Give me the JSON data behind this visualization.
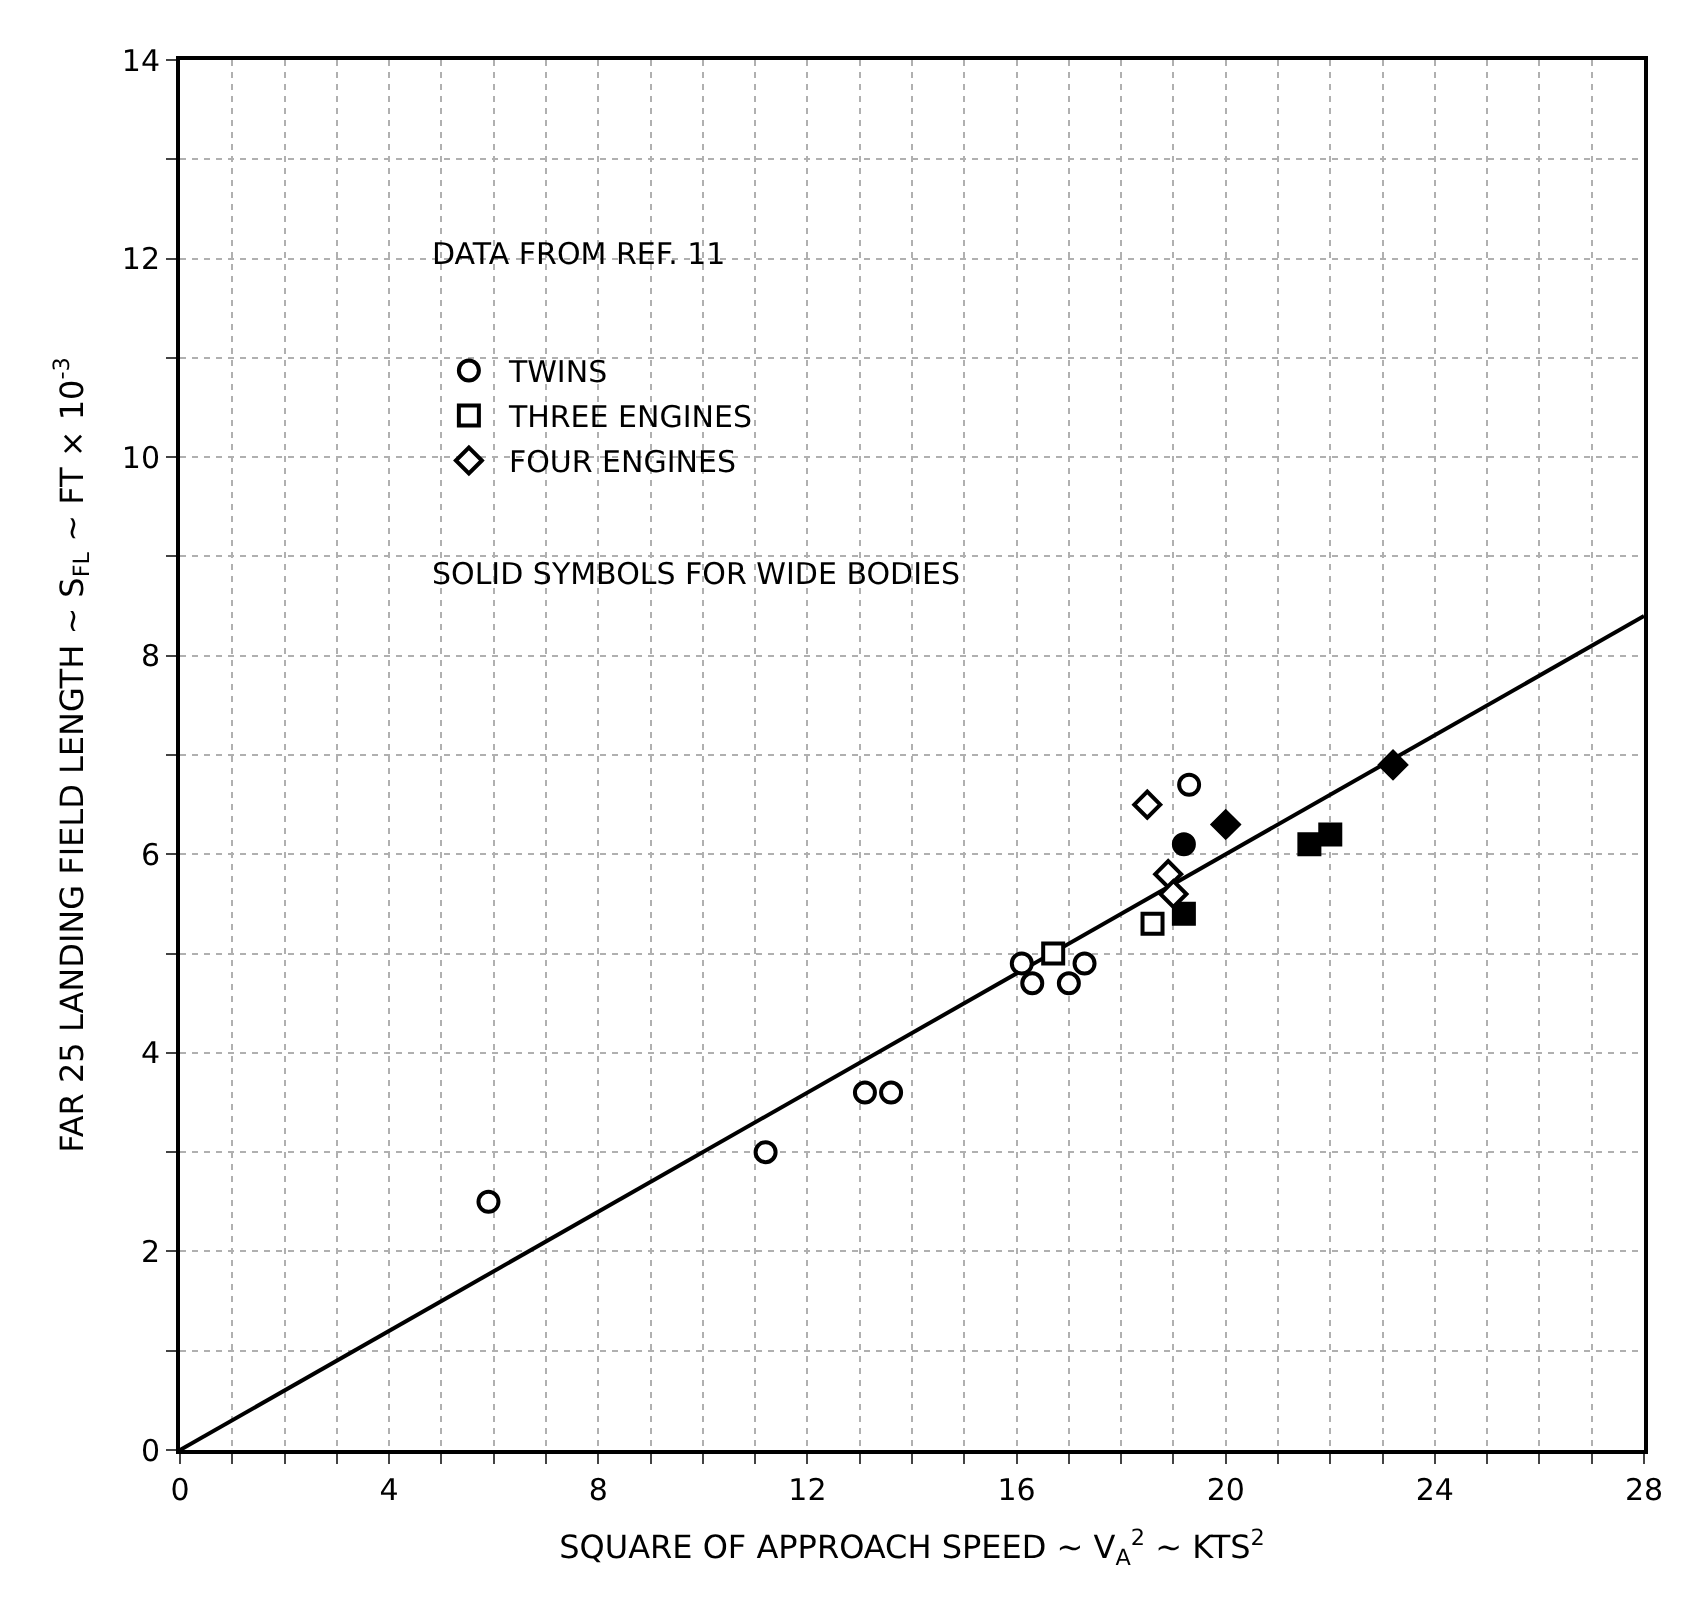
{
  "chart_data": {
    "type": "scatter",
    "xlabel": "SQUARE OF APPROACH SPEED ~ V$_{A}$$^{2}$ ~ KTS$^{2}$",
    "ylabel": "FAR 25 LANDING FIELD LENGTH ~ S$_{FL}$ ~ FT × 10$^{-3}$",
    "annotations": [
      "DATA FROM REF. 11",
      "SOLID SYMBOLS FOR WIDE BODIES"
    ],
    "xlim": [
      0,
      28
    ],
    "ylim": [
      0,
      14
    ],
    "xticks": [
      0,
      {
        "value": 1,
        "label": null
      },
      {
        "value": 2,
        "label": null
      },
      {
        "value": 3,
        "label": null
      },
      4,
      {
        "value": 5,
        "label": null
      },
      {
        "value": 6,
        "label": null
      },
      {
        "value": 7,
        "label": null
      },
      8,
      {
        "value": 9,
        "label": null
      },
      {
        "value": 10,
        "label": null
      },
      {
        "value": 11,
        "label": null
      },
      12,
      {
        "value": 13,
        "label": null
      },
      {
        "value": 14,
        "label": null
      },
      {
        "value": 15,
        "label": null
      },
      16,
      {
        "value": 17,
        "label": null
      },
      {
        "value": 18,
        "label": null
      },
      {
        "value": 19,
        "label": null
      },
      20,
      {
        "value": 21,
        "label": null
      },
      {
        "value": 22,
        "label": null
      },
      {
        "value": 23,
        "label": null
      },
      24,
      {
        "value": 25,
        "label": null
      },
      {
        "value": 26,
        "label": null
      },
      {
        "value": 27,
        "label": null
      },
      28
    ],
    "yticks": [
      0,
      {
        "value": 1,
        "label": null
      },
      2,
      {
        "value": 3,
        "label": null
      },
      4,
      {
        "value": 5,
        "label": null
      },
      6,
      {
        "value": 7,
        "label": null
      },
      8,
      {
        "value": 9,
        "label": null
      },
      10,
      {
        "value": 11,
        "label": null
      },
      12,
      {
        "value": 13,
        "label": null
      },
      14
    ],
    "grid": true,
    "legend": "top left",
    "series": [
      {
        "name": "TWINS",
        "marker": "circle",
        "color": "#ffffff",
        "x": [
          5.9,
          11.2,
          13.1,
          13.6,
          16.1,
          16.3,
          17.0,
          17.3,
          19.3
        ],
        "values": [
          2.5,
          3.0,
          3.6,
          3.6,
          4.9,
          4.7,
          4.7,
          4.9,
          6.7
        ]
      },
      {
        "name": "THREE ENGINES",
        "marker": "square",
        "color": "#ffffff",
        "x": [
          16.7,
          18.6
        ],
        "values": [
          5.0,
          5.3
        ]
      },
      {
        "name": "FOUR ENGINES",
        "marker": "diamond",
        "color": "#ffffff",
        "x": [
          18.5,
          18.9,
          19.0
        ],
        "values": [
          6.5,
          5.8,
          5.6
        ]
      },
      {
        "marker": "circle",
        "color": "#000000",
        "x": [
          19.2
        ],
        "values": [
          6.1
        ]
      },
      {
        "marker": "square",
        "color": "#000000",
        "x": [
          19.2,
          21.6,
          22.0
        ],
        "values": [
          5.4,
          6.1,
          6.2
        ]
      },
      {
        "marker": "diamond",
        "color": "#000000",
        "x": [
          20.0,
          23.2
        ],
        "values": [
          6.3,
          6.9
        ]
      },
      {
        "type": "line",
        "marker": "none",
        "color": "#000000",
        "x": [
          0,
          28
        ],
        "values": [
          0,
          8.4
        ]
      }
    ]
  }
}
